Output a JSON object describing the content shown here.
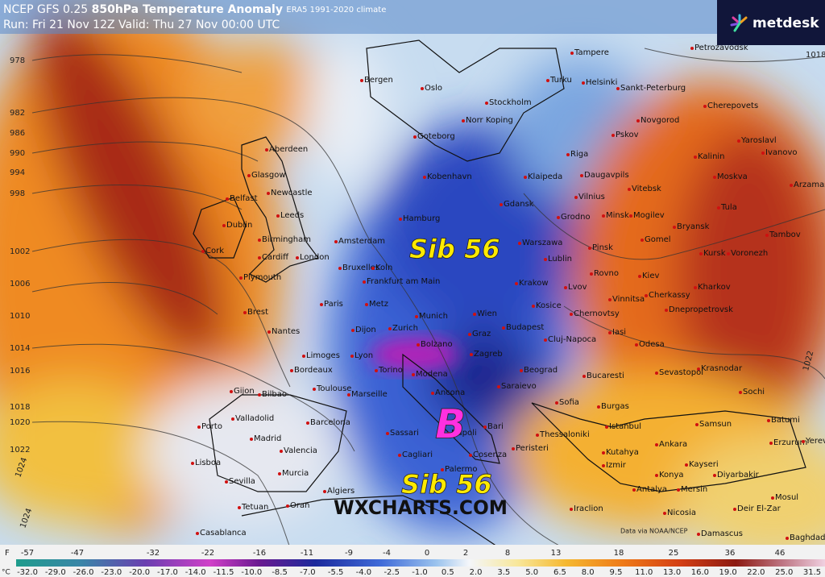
{
  "header": {
    "model": "NCEP GFS 0.25",
    "title": "850hPa Temperature Anomaly",
    "climate": "ERA5 1991-2020 climate",
    "run": "Run: Fri 21 Nov 12Z Valid: Thu 27 Nov 00:00 UTC"
  },
  "logo": "metdesk",
  "annotations": [
    "Sib 56",
    "Sib 56",
    "B"
  ],
  "watermark": "WXCHARTS.COM",
  "credit": "Data via NOAA/NCEP",
  "isobars": [
    "978",
    "982",
    "986",
    "990",
    "994",
    "998",
    "1002",
    "1006",
    "1010",
    "1014",
    "1016",
    "1018",
    "1020",
    "1022",
    "1024",
    "1024",
    "1018",
    "1022"
  ],
  "cities": [
    "Tampere",
    "Petrozavodsk",
    "Bergen",
    "Oslo",
    "Turku",
    "Helsinki",
    "Sankt-Peterburg",
    "Stockholm",
    "Cherepovets",
    "Norr Koping",
    "Pskov",
    "Novgorod",
    "Yaroslavl",
    "Goteborg",
    "Riga",
    "Kalinin",
    "Ivanovo",
    "Aberdeen",
    "Glasgow",
    "Klaipeda",
    "Daugavpils",
    "Vitebsk",
    "Moskva",
    "Kobenhavn",
    "Arzamas",
    "Newcastle",
    "Belfast",
    "Vilnius",
    "Tula",
    "Gdansk",
    "Minsk",
    "Mogilev",
    "Leeds",
    "Dublin",
    "Hamburg",
    "Grodno",
    "Bryansk",
    "Tambov",
    "Birmingham",
    "Amsterdam",
    "Warszawa",
    "Pinsk",
    "Gomel",
    "Kursk",
    "Voronezh",
    "Cork",
    "Cardiff",
    "London",
    "Lublin",
    "Bruxelles",
    "Koln",
    "Rovno",
    "Kiev",
    "Plymouth",
    "Frankfurt am Main",
    "Krakow",
    "Lvov",
    "Kharkov",
    "Paris",
    "Vinnitsa",
    "Cherkassy",
    "Metz",
    "Kosice",
    "Dnepropetrovsk",
    "Chernovtsy",
    "Brest",
    "Munich",
    "Wien",
    "Nantes",
    "Dijon",
    "Zurich",
    "Budapest",
    "Iasi",
    "Graz",
    "Odesa",
    "Cluj-Napoca",
    "Limoges",
    "Lyon",
    "Bolzano",
    "Zagreb",
    "Krasnodar",
    "Sevastopol",
    "Bordeaux",
    "Torino",
    "Beograd",
    "Bucaresti",
    "Modena",
    "Saraievo",
    "Toulouse",
    "Marseille",
    "Ancona",
    "Sofia",
    "Sochi",
    "Gijon",
    "Bilbao",
    "Burgas",
    "Valladolid",
    "Barcelona",
    "Istanbul",
    "Samsun",
    "Batumi",
    "Porto",
    "Madrid",
    "Bari",
    "Thessaloniki",
    "Erzurum",
    "Yerevan",
    "Valencia",
    "Sassari",
    "Napoli",
    "Ankara",
    "Kutahya",
    "Peristeri",
    "Cagliari",
    "Lisboa",
    "Cosenza",
    "Izmir",
    "Konya",
    "Kayseri",
    "Diyarbakir",
    "Murcia",
    "Palermo",
    "Sevilla",
    "Antalya",
    "Mersin",
    "Mosul",
    "Algiers",
    "Oran",
    "Tetuan",
    "Iraclion",
    "Nicosia",
    "Deir El-Zar",
    "Casablanca",
    "Damascus",
    "Baghdad"
  ],
  "legend": {
    "f_unit": "F",
    "f_labels": [
      "-57",
      "-47",
      "-32",
      "-22",
      "-16",
      "-11",
      "-9",
      "-4",
      "0",
      "2",
      "8",
      "13",
      "18",
      "25",
      "36",
      "46"
    ],
    "c_unit": "°C",
    "c_labels": [
      "-32.0",
      "-29.0",
      "-26.0",
      "-23.0",
      "-20.0",
      "-17.0",
      "-14.0",
      "-11.5",
      "-10.0",
      "-8.5",
      "-7.0",
      "-5.5",
      "-4.0",
      "-2.5",
      "-1.0",
      "0.5",
      "2.0",
      "3.5",
      "5.0",
      "6.5",
      "8.0",
      "9.5",
      "11.0",
      "13.0",
      "16.0",
      "19.0",
      "22.0",
      "25.0",
      "31.5"
    ]
  }
}
